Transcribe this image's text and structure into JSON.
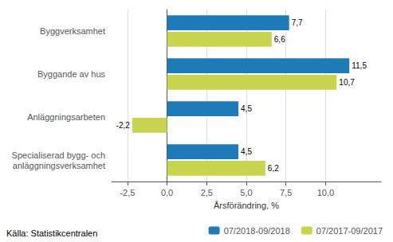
{
  "chart_data": {
    "type": "bar",
    "orientation": "horizontal",
    "categories": [
      "Specialiserad bygg- och\nanläggningsverksamhet",
      "Anläggningsarbeten",
      "Byggande av hus",
      "Byggverksamhet"
    ],
    "series": [
      {
        "name": "07/2018-09/2018",
        "color": "#1f7ab8",
        "values": [
          4.5,
          4.5,
          11.5,
          7.7
        ],
        "value_labels": [
          "4,5",
          "4,5",
          "11,5",
          "7,7"
        ]
      },
      {
        "name": "07/2017-09/2017",
        "color": "#c8d44e",
        "values": [
          6.2,
          -2.2,
          10.7,
          6.6
        ],
        "value_labels": [
          "6,2",
          "-2,2",
          "10,7",
          "6,6"
        ]
      }
    ],
    "xlabel": "Årsförändring, %",
    "xlim": [
      -3.5,
      13.5
    ],
    "xticks": [
      {
        "value": -2.5,
        "label": "-2,5"
      },
      {
        "value": 0.0,
        "label": "0,0"
      },
      {
        "value": 2.5,
        "label": "2,5"
      },
      {
        "value": 5.0,
        "label": "5,0"
      },
      {
        "value": 7.5,
        "label": "7,5"
      },
      {
        "value": 10.0,
        "label": "10,0"
      }
    ],
    "grid": true,
    "legend": "lower right",
    "data_labels": true,
    "annotations": [
      "Källa: Statistikcentralen"
    ]
  }
}
